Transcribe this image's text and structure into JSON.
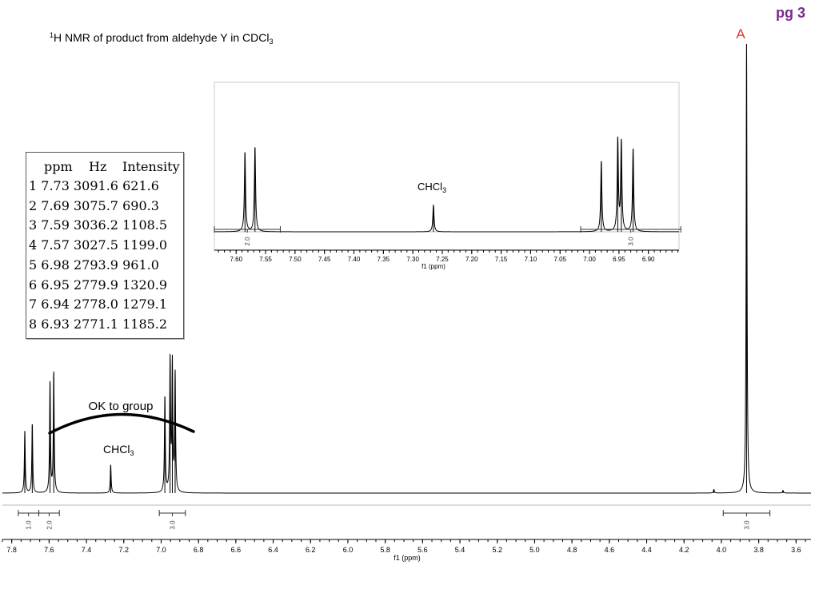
{
  "page_label": "pg 3",
  "title_superscript": "1",
  "title_main": "H NMR of product from aldehyde Y in CDCl",
  "title_subscript": "3",
  "peak_A_label": "A",
  "annotation_group": "OK to group",
  "solvent_label_main": "CHCl",
  "solvent_label_sub": "3",
  "colors": {
    "page_label": "#7b2a8e",
    "peak_A_label": "#e0382c",
    "trace": "#000000"
  },
  "peak_table": {
    "headers": [
      "ppm",
      "Hz",
      "Intensity"
    ],
    "rows": [
      {
        "n": "1",
        "ppm": "7.73",
        "hz": "3091.6",
        "intensity": "621.6"
      },
      {
        "n": "2",
        "ppm": "7.69",
        "hz": "3075.7",
        "intensity": "690.3"
      },
      {
        "n": "3",
        "ppm": "7.59",
        "hz": "3036.2",
        "intensity": "1108.5"
      },
      {
        "n": "4",
        "ppm": "7.57",
        "hz": "3027.5",
        "intensity": "1199.0"
      },
      {
        "n": "5",
        "ppm": "6.98",
        "hz": "2793.9",
        "intensity": "961.0"
      },
      {
        "n": "6",
        "ppm": "6.95",
        "hz": "2779.9",
        "intensity": "1320.9"
      },
      {
        "n": "7",
        "ppm": "6.94",
        "hz": "2778.0",
        "intensity": "1279.1"
      },
      {
        "n": "8",
        "ppm": "6.93",
        "hz": "2771.1",
        "intensity": "1185.2"
      }
    ]
  },
  "chart_data": [
    {
      "type": "line",
      "name": "main-spectrum",
      "xlabel": "f1 (ppm)",
      "xlim": [
        7.85,
        3.52
      ],
      "x_reversed": true,
      "ticks": [
        "7.8",
        "7.6",
        "7.4",
        "7.2",
        "7.0",
        "6.8",
        "6.6",
        "6.4",
        "6.2",
        "6.0",
        "5.8",
        "5.6",
        "5.4",
        "5.2",
        "5.0",
        "4.8",
        "4.6",
        "4.4",
        "4.2",
        "4.0",
        "3.8",
        "3.6"
      ],
      "peaks": [
        {
          "ppm": 7.73,
          "height": 0.138
        },
        {
          "ppm": 7.69,
          "height": 0.153
        },
        {
          "ppm": 7.595,
          "height": 0.246
        },
        {
          "ppm": 7.575,
          "height": 0.266
        },
        {
          "ppm": 7.27,
          "height": 0.063
        },
        {
          "ppm": 6.98,
          "height": 0.213
        },
        {
          "ppm": 6.952,
          "height": 0.293
        },
        {
          "ppm": 6.94,
          "height": 0.283
        },
        {
          "ppm": 6.925,
          "height": 0.263
        },
        {
          "ppm": 4.04,
          "height": 0.008
        },
        {
          "ppm": 3.865,
          "height": 1.0
        },
        {
          "ppm": 3.67,
          "height": 0.006
        }
      ],
      "integrals": [
        {
          "from": 7.765,
          "to": 7.655,
          "value": "1.0"
        },
        {
          "from": 7.655,
          "to": 7.545,
          "value": "2.0"
        },
        {
          "from": 7.01,
          "to": 6.87,
          "value": "3.0"
        },
        {
          "from": 3.99,
          "to": 3.74,
          "value": "3.0"
        }
      ]
    },
    {
      "type": "line",
      "name": "inset-spectrum",
      "xlabel": "f1 (ppm)",
      "xlim": [
        7.637,
        6.848
      ],
      "x_reversed": true,
      "ticks": [
        "7.60",
        "7.55",
        "7.50",
        "7.45",
        "7.40",
        "7.35",
        "7.30",
        "7.25",
        "7.20",
        "7.15",
        "7.10",
        "7.05",
        "7.00",
        "6.95",
        "6.90"
      ],
      "peaks": [
        {
          "ppm": 7.585,
          "height": 0.62
        },
        {
          "ppm": 7.568,
          "height": 0.66
        },
        {
          "ppm": 7.265,
          "height": 0.21
        },
        {
          "ppm": 6.98,
          "height": 0.55
        },
        {
          "ppm": 6.952,
          "height": 0.72
        },
        {
          "ppm": 6.946,
          "height": 0.7
        },
        {
          "ppm": 6.926,
          "height": 0.65
        }
      ],
      "integrals": [
        {
          "from": 7.637,
          "to": 7.525,
          "value": "2.0"
        },
        {
          "from": 7.015,
          "to": 6.845,
          "value": "3.0"
        }
      ]
    }
  ]
}
